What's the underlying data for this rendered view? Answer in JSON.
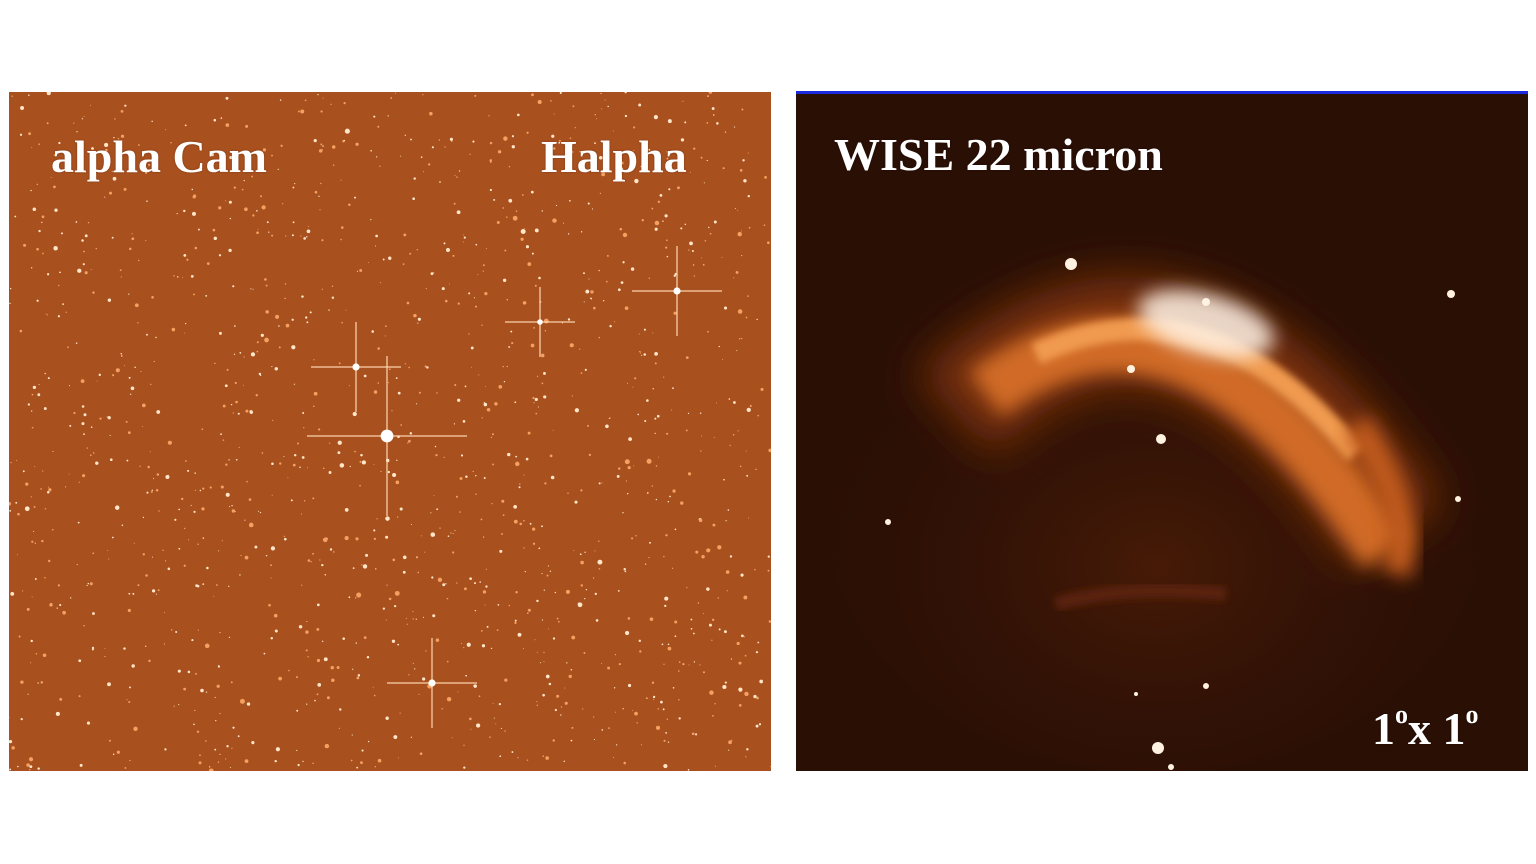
{
  "left_panel": {
    "object_label": "alpha Cam",
    "filter_label": "Halpha",
    "background_color": "#a9501f"
  },
  "right_panel": {
    "instrument_label": "WISE 22 micron",
    "scale_label": {
      "value_a": "1",
      "unit_a": "o",
      "separator": "x ",
      "value_b": "1",
      "unit_b": "o"
    },
    "background_color": "#2a0f05",
    "border_color": "#1a2be0"
  }
}
